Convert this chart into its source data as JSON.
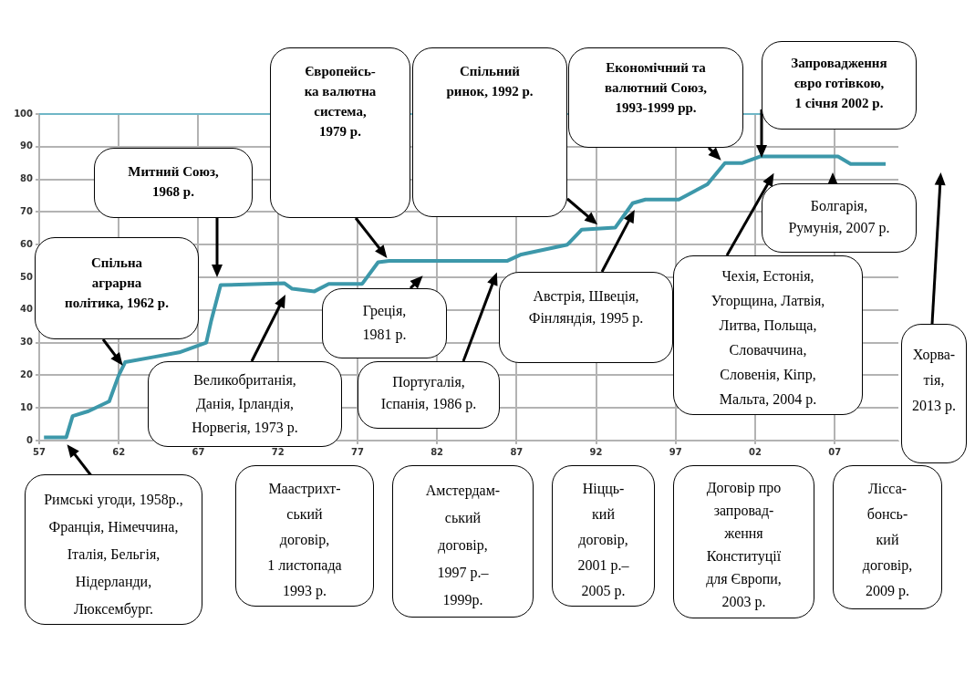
{
  "chart_data": {
    "type": "line",
    "x": [
      1957.3,
      1958.7,
      1959.1,
      1960.1,
      1961.4,
      1962,
      1962.4,
      1964.2,
      1965.8,
      1967.5,
      1967.8,
      1968.4,
      1972.4,
      1972.9,
      1974.3,
      1975.2,
      1977.3,
      1978.3,
      1979,
      1986.4,
      1987.3,
      1990.2,
      1991.1,
      1993.2,
      1994.3,
      1995.1,
      1997.2,
      1999,
      2000.1,
      2001.2,
      2002.3,
      2007.2,
      2008,
      2010.2
    ],
    "series": [
      {
        "color": "#3d98aa",
        "values": [
          1,
          1,
          7.5,
          9,
          12,
          20,
          24,
          25.6,
          27,
          30,
          36.5,
          47.6,
          48.2,
          46.5,
          45.7,
          48,
          48,
          54.6,
          55,
          55,
          57,
          60,
          64.6,
          65.2,
          72.7,
          73.8,
          73.8,
          78.5,
          85,
          85,
          87,
          87,
          84.7,
          84.7
        ]
      }
    ],
    "xlim": [
      1957,
      2011
    ],
    "xticks": [
      {
        "value": 1957,
        "label": "57"
      },
      {
        "value": 1962,
        "label": "62"
      },
      {
        "value": 1967,
        "label": "67"
      },
      {
        "value": 1972,
        "label": "72"
      },
      {
        "value": 1977,
        "label": "77"
      },
      {
        "value": 1982,
        "label": "82"
      },
      {
        "value": 1987,
        "label": "87"
      },
      {
        "value": 1992,
        "label": "92"
      },
      {
        "value": 1997,
        "label": "97"
      },
      {
        "value": 2002,
        "label": "02"
      },
      {
        "value": 2007,
        "label": "07"
      }
    ],
    "ylim": [
      0,
      100
    ],
    "yticks": [
      0,
      10,
      20,
      30,
      40,
      50,
      60,
      70,
      80,
      90,
      100
    ],
    "grid": true,
    "legend": false,
    "marker": "none",
    "line_style": "solid",
    "ref_lines": [
      {
        "axis": "y",
        "value": 100,
        "color": "#6fb6c6"
      }
    ],
    "annotations": [
      "Спільна\nаграрна\nполітика, 1962 р.",
      "Митний Союз,\n1968 р.",
      "Європейсь-\nка валютна\nсистема,\n1979 р.",
      "Спільний\nринок, 1992 р.",
      "Економічний та\nвалютний Союз,\n1993-1999 рр.",
      "Запровадження\nєвро готівкою,\n1 січня 2002 р.",
      "Болгарія,\nРумунія, 2007 р.",
      "Хорва-\nтія,\n2013 р.",
      "Чехія, Естонія,\nУгорщина, Латвія,\nЛитва, Польща,\nСловаччина,\nСловенія, Кіпр,\nМальта, 2004 р.",
      "Австрія, Швеція,\nФінляндія, 1995 р.",
      "Португалія,\nІспанія, 1986 р.",
      "Греція,\n1981 р.",
      "Великобританія,\nДанія, Ірландія,\nНорвегія, 1973 р.",
      "Римські угоди, 1958р.,\nФранція, Німеччина,\nІталія, Бельгія,\nНідерланди,\nЛюксембург.",
      "Маастрихт-\nський\nдоговір,\n1 листопада\n1993 р.",
      "Амстердам-\nський\nдоговір,\n1997 р.–\n1999р.",
      "Ніцць-\nкий\nдоговір,\n2001 р.–\n2005 р.",
      "Договір про\nзапровад-\nження\nКонституції\nдля Європи,\n2003 р.",
      "Ліcса-\nбонсь-\nкий\nдоговір,\n2009 р."
    ]
  }
}
